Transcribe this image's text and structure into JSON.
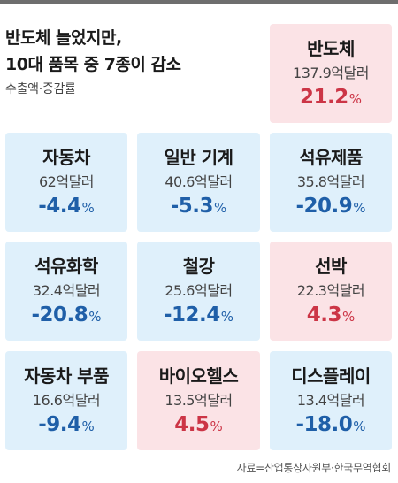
{
  "title_lines": [
    "반도체 늘었지만,",
    "10대 품목 중 7종이 감소"
  ],
  "subtitle": "수출액·증감률",
  "source": "자료=산업통상자원부·한국무역협회",
  "colors": {
    "decrease_card": "#dff0fb",
    "increase_card": "#fbe3e6",
    "decrease_text": "#1f5fa8",
    "increase_text": "#cc3546"
  },
  "chart_data": {
    "type": "table",
    "title": "반도체 늘었지만, 10대 품목 중 7종이 감소",
    "subtitle": "수출액·증감률",
    "items": [
      {
        "name": "반도체",
        "value": 137.9,
        "value_label": "137.9억달러",
        "change": 21.2,
        "change_label": "21.2",
        "pct": "%"
      },
      {
        "name": "자동차",
        "value": 62,
        "value_label": "62억달러",
        "change": -4.4,
        "change_label": "-4.4",
        "pct": "%"
      },
      {
        "name": "일반 기계",
        "value": 40.6,
        "value_label": "40.6억달러",
        "change": -5.3,
        "change_label": "-5.3",
        "pct": "%"
      },
      {
        "name": "석유제품",
        "value": 35.8,
        "value_label": "35.8억달러",
        "change": -20.9,
        "change_label": "-20.9",
        "pct": "%"
      },
      {
        "name": "석유화학",
        "value": 32.4,
        "value_label": "32.4억달러",
        "change": -20.8,
        "change_label": "-20.8",
        "pct": "%"
      },
      {
        "name": "철강",
        "value": 25.6,
        "value_label": "25.6억달러",
        "change": -12.4,
        "change_label": "-12.4",
        "pct": "%"
      },
      {
        "name": "선박",
        "value": 22.3,
        "value_label": "22.3억달러",
        "change": 4.3,
        "change_label": "4.3",
        "pct": "%"
      },
      {
        "name": "자동차 부품",
        "value": 16.6,
        "value_label": "16.6억달러",
        "change": -9.4,
        "change_label": "-9.4",
        "pct": "%"
      },
      {
        "name": "바이오헬스",
        "value": 13.5,
        "value_label": "13.5억달러",
        "change": 4.5,
        "change_label": "4.5",
        "pct": "%"
      },
      {
        "name": "디스플레이",
        "value": 13.4,
        "value_label": "13.4억달러",
        "change": -18.0,
        "change_label": "-18.0",
        "pct": "%"
      }
    ]
  }
}
